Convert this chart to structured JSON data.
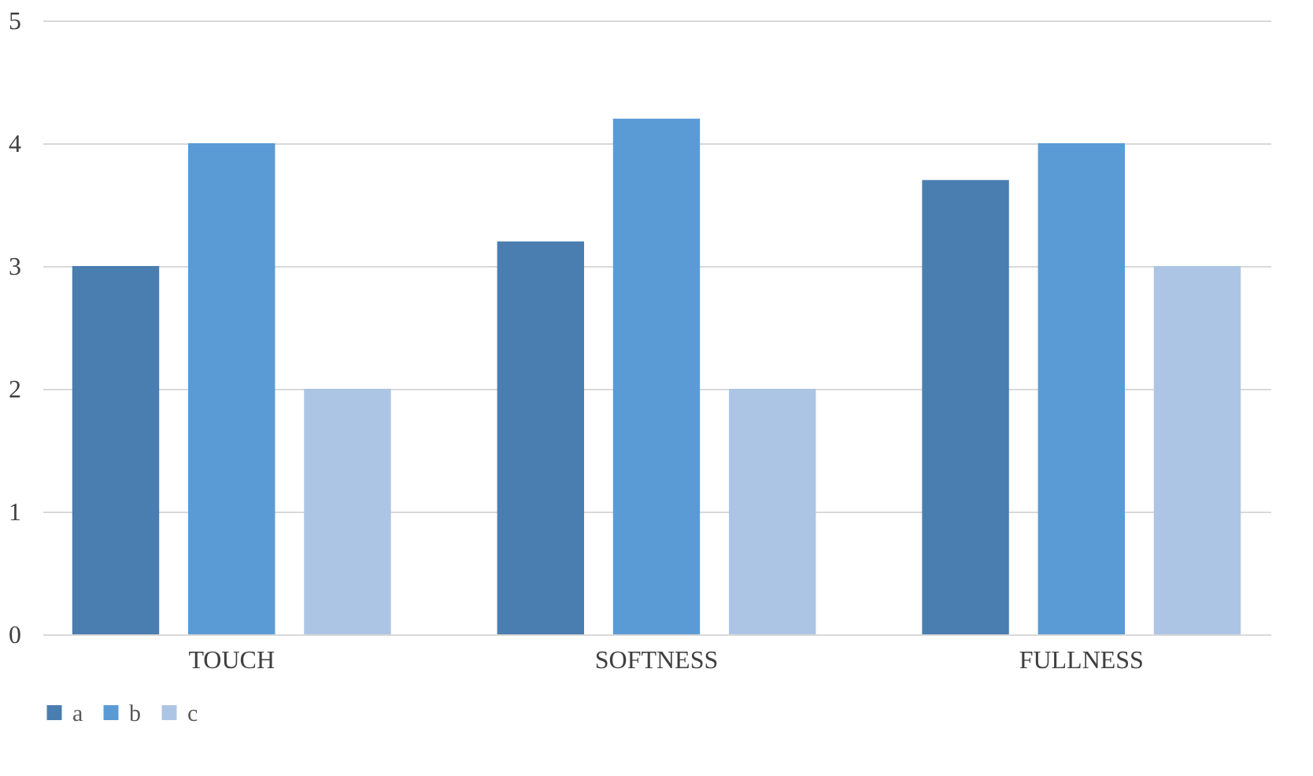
{
  "chart_data": {
    "type": "bar",
    "categories": [
      "TOUCH",
      "SOFTNESS",
      "FULLNESS"
    ],
    "series": [
      {
        "name": "a",
        "color": "#4a7eb0",
        "values": [
          3,
          3.2,
          3.7
        ]
      },
      {
        "name": "b",
        "color": "#5b9bd5",
        "values": [
          4,
          4.2,
          4
        ]
      },
      {
        "name": "c",
        "color": "#adc5e5",
        "values": [
          2,
          2,
          3
        ]
      }
    ],
    "ylim": [
      0,
      5
    ],
    "yticks": [
      0,
      1,
      2,
      3,
      4,
      5
    ],
    "grid": "y",
    "legend": "bottom"
  }
}
